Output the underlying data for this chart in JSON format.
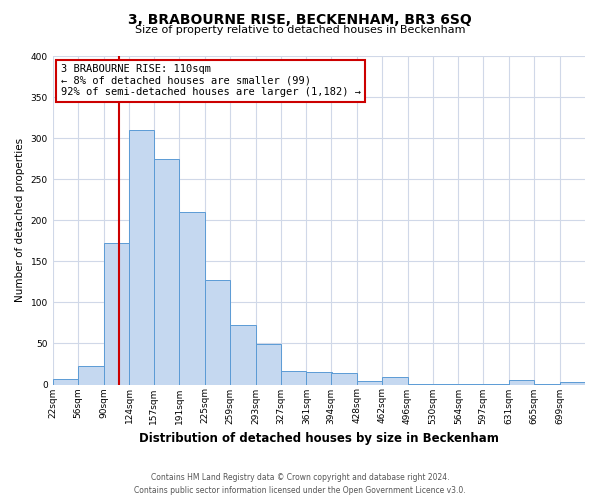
{
  "title": "3, BRABOURNE RISE, BECKENHAM, BR3 6SQ",
  "subtitle": "Size of property relative to detached houses in Beckenham",
  "xlabel": "Distribution of detached houses by size in Beckenham",
  "ylabel": "Number of detached properties",
  "bin_labels": [
    "22sqm",
    "56sqm",
    "90sqm",
    "124sqm",
    "157sqm",
    "191sqm",
    "225sqm",
    "259sqm",
    "293sqm",
    "327sqm",
    "361sqm",
    "394sqm",
    "428sqm",
    "462sqm",
    "496sqm",
    "530sqm",
    "564sqm",
    "597sqm",
    "631sqm",
    "665sqm",
    "699sqm"
  ],
  "bar_heights": [
    7,
    22,
    172,
    310,
    275,
    210,
    127,
    73,
    49,
    16,
    15,
    14,
    4,
    9,
    1,
    1,
    1,
    1,
    5,
    1,
    3
  ],
  "bar_color": "#c5d8f0",
  "bar_edge_color": "#5b9bd5",
  "vline_x": 110,
  "vline_color": "#cc0000",
  "annotation_line1": "3 BRABOURNE RISE: 110sqm",
  "annotation_line2": "← 8% of detached houses are smaller (99)",
  "annotation_line3": "92% of semi-detached houses are larger (1,182) →",
  "annotation_box_color": "#cc0000",
  "ylim": [
    0,
    400
  ],
  "yticks": [
    0,
    50,
    100,
    150,
    200,
    250,
    300,
    350,
    400
  ],
  "footer_line1": "Contains HM Land Registry data © Crown copyright and database right 2024.",
  "footer_line2": "Contains public sector information licensed under the Open Government Licence v3.0.",
  "background_color": "#ffffff",
  "grid_color": "#d0d8e8",
  "title_fontsize": 10,
  "subtitle_fontsize": 8,
  "ylabel_fontsize": 7.5,
  "xlabel_fontsize": 8.5,
  "tick_fontsize": 6.5,
  "annotation_fontsize": 7.5,
  "footer_fontsize": 5.5
}
